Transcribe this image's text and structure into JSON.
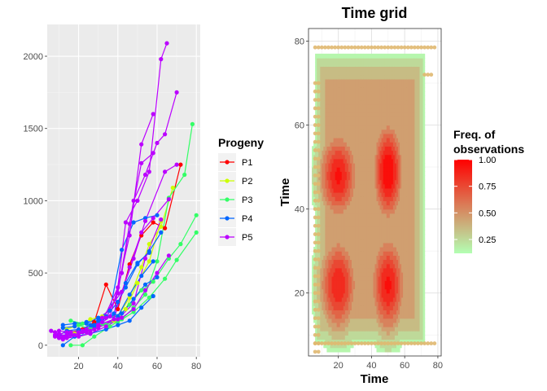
{
  "chart_data": [
    {
      "type": "line",
      "title": "",
      "xlabel": "",
      "ylabel": "",
      "xlim": [
        4,
        82
      ],
      "ylim": [
        -80,
        2220
      ],
      "x_ticks": [
        20,
        40,
        60,
        80
      ],
      "y_ticks": [
        0,
        500,
        1000,
        1500,
        2000
      ],
      "grid": true,
      "legend": {
        "title": "Progeny",
        "position": "right"
      },
      "series": [
        {
          "name": "P1",
          "color": "#FF0000",
          "lines": [
            [
              [
                16,
                90
              ],
              [
                22,
                110
              ],
              [
                28,
                160
              ],
              [
                34,
                420
              ],
              [
                40,
                250
              ],
              [
                46,
                560
              ],
              [
                52,
                760
              ],
              [
                58,
                850
              ],
              [
                64,
                810
              ],
              [
                72,
                1250
              ]
            ]
          ]
        },
        {
          "name": "P2",
          "color": "#CCFF00",
          "lines": [
            [
              [
                14,
                110
              ],
              [
                20,
                140
              ],
              [
                26,
                180
              ],
              [
                32,
                200
              ],
              [
                40,
                200
              ],
              [
                46,
                330
              ],
              [
                52,
                540
              ],
              [
                56,
                700
              ],
              [
                62,
                820
              ],
              [
                68,
                1090
              ]
            ],
            [
              [
                18,
                80
              ],
              [
                24,
                90
              ],
              [
                30,
                130
              ],
              [
                38,
                170
              ],
              [
                44,
                250
              ],
              [
                50,
                430
              ],
              [
                56,
                580
              ],
              [
                62,
                860
              ]
            ]
          ]
        },
        {
          "name": "P3",
          "color": "#33FF66",
          "lines": [
            [
              [
                16,
                0
              ],
              [
                22,
                0
              ],
              [
                28,
                60
              ],
              [
                36,
                130
              ],
              [
                42,
                180
              ],
              [
                48,
                260
              ],
              [
                54,
                350
              ],
              [
                60,
                580
              ],
              [
                66,
                1020
              ],
              [
                74,
                1180
              ],
              [
                78,
                1530
              ]
            ],
            [
              [
                16,
                170
              ],
              [
                22,
                150
              ],
              [
                28,
                120
              ],
              [
                34,
                140
              ],
              [
                40,
                190
              ],
              [
                46,
                280
              ],
              [
                52,
                380
              ],
              [
                58,
                440
              ],
              [
                66,
                600
              ],
              [
                72,
                700
              ],
              [
                80,
                900
              ]
            ],
            [
              [
                20,
                140
              ],
              [
                26,
                110
              ],
              [
                32,
                150
              ],
              [
                40,
                160
              ],
              [
                48,
                230
              ],
              [
                56,
                330
              ],
              [
                64,
                460
              ],
              [
                70,
                590
              ],
              [
                80,
                780
              ]
            ]
          ]
        },
        {
          "name": "P4",
          "color": "#0066FF",
          "lines": [
            [
              [
                12,
                60
              ],
              [
                16,
                80
              ],
              [
                22,
                90
              ],
              [
                28,
                140
              ],
              [
                34,
                200
              ],
              [
                40,
                300
              ],
              [
                44,
                400
              ],
              [
                50,
                560
              ],
              [
                56,
                650
              ],
              [
                62,
                780
              ]
            ],
            [
              [
                10,
                70
              ],
              [
                14,
                100
              ],
              [
                20,
                110
              ],
              [
                28,
                130
              ],
              [
                34,
                190
              ],
              [
                40,
                200
              ],
              [
                46,
                350
              ],
              [
                52,
                480
              ],
              [
                58,
                580
              ]
            ],
            [
              [
                12,
                120
              ],
              [
                18,
                130
              ],
              [
                24,
                150
              ],
              [
                30,
                190
              ],
              [
                36,
                240
              ],
              [
                42,
                660
              ],
              [
                48,
                850
              ],
              [
                54,
                880
              ],
              [
                60,
                900
              ]
            ],
            [
              [
                14,
                80
              ],
              [
                20,
                100
              ],
              [
                26,
                140
              ],
              [
                32,
                180
              ],
              [
                38,
                220
              ],
              [
                44,
                430
              ],
              [
                50,
                570
              ],
              [
                56,
                640
              ]
            ],
            [
              [
                12,
                0
              ],
              [
                18,
                60
              ],
              [
                26,
                80
              ],
              [
                34,
                110
              ],
              [
                40,
                140
              ],
              [
                46,
                170
              ],
              [
                52,
                260
              ],
              [
                58,
                340
              ]
            ],
            [
              [
                12,
                140
              ],
              [
                18,
                150
              ],
              [
                24,
                160
              ],
              [
                30,
                170
              ],
              [
                36,
                200
              ],
              [
                42,
                220
              ],
              [
                48,
                320
              ],
              [
                54,
                420
              ],
              [
                60,
                470
              ]
            ]
          ]
        },
        {
          "name": "P5",
          "color": "#BB00FF",
          "lines": [
            [
              [
                6,
                100
              ],
              [
                10,
                60
              ],
              [
                16,
                80
              ],
              [
                22,
                100
              ],
              [
                30,
                120
              ],
              [
                38,
                180
              ],
              [
                44,
                850
              ],
              [
                50,
                1000
              ],
              [
                56,
                1200
              ],
              [
                62,
                1980
              ],
              [
                65,
                2090
              ]
            ],
            [
              [
                8,
                70
              ],
              [
                14,
                70
              ],
              [
                20,
                90
              ],
              [
                28,
                110
              ],
              [
                36,
                200
              ],
              [
                42,
                500
              ],
              [
                48,
                1000
              ],
              [
                54,
                1180
              ],
              [
                60,
                1400
              ],
              [
                64,
                1460
              ],
              [
                70,
                1750
              ]
            ],
            [
              [
                8,
                90
              ],
              [
                12,
                60
              ],
              [
                18,
                70
              ],
              [
                24,
                90
              ],
              [
                32,
                160
              ],
              [
                40,
                400
              ],
              [
                46,
                760
              ],
              [
                52,
                1390
              ],
              [
                58,
                1600
              ]
            ],
            [
              [
                10,
                80
              ],
              [
                14,
                60
              ],
              [
                20,
                80
              ],
              [
                26,
                100
              ],
              [
                34,
                190
              ],
              [
                40,
                360
              ],
              [
                46,
                840
              ],
              [
                52,
                1260
              ],
              [
                58,
                1330
              ]
            ],
            [
              [
                8,
                60
              ],
              [
                12,
                40
              ],
              [
                18,
                70
              ],
              [
                24,
                110
              ],
              [
                32,
                190
              ],
              [
                42,
                370
              ],
              [
                48,
                600
              ],
              [
                54,
                860
              ],
              [
                64,
                1200
              ],
              [
                70,
                1250
              ]
            ],
            [
              [
                8,
                70
              ],
              [
                14,
                90
              ],
              [
                22,
                90
              ],
              [
                30,
                140
              ],
              [
                38,
                180
              ],
              [
                46,
                540
              ],
              [
                52,
                780
              ],
              [
                58,
                880
              ],
              [
                66,
                1010
              ]
            ],
            [
              [
                10,
                50
              ],
              [
                14,
                50
              ],
              [
                20,
                60
              ],
              [
                26,
                80
              ],
              [
                34,
                130
              ],
              [
                42,
                190
              ],
              [
                48,
                250
              ],
              [
                54,
                380
              ],
              [
                60,
                500
              ],
              [
                66,
                620
              ]
            ],
            [
              [
                10,
                100
              ],
              [
                16,
                90
              ],
              [
                22,
                100
              ],
              [
                30,
                130
              ],
              [
                40,
                180
              ],
              [
                48,
                290
              ],
              [
                54,
                600
              ],
              [
                62,
                870
              ]
            ]
          ]
        }
      ]
    },
    {
      "type": "heatmap",
      "title": "Time grid",
      "xlabel": "Time",
      "ylabel": "Time",
      "xlim": [
        2,
        82
      ],
      "ylim": [
        5,
        83
      ],
      "x_ticks": [
        20,
        40,
        60,
        80
      ],
      "y_ticks": [
        20,
        40,
        60,
        80
      ],
      "grid": true,
      "legend": {
        "title_lines": [
          "Freq. of",
          "observations"
        ],
        "position": "right",
        "ticks": [
          "1.00",
          "0.75",
          "0.50",
          "0.25"
        ],
        "tick_values": [
          1.0,
          0.75,
          0.5,
          0.25
        ],
        "range": [
          0.12,
          1.0
        ],
        "color_low": "#B3FFB3",
        "color_high": "#FF0000"
      },
      "density_peaks": [
        {
          "x": 20,
          "y": 48,
          "sx": 9,
          "sy": 8,
          "w": 0.92
        },
        {
          "x": 50,
          "y": 49,
          "sx": 7,
          "sy": 9,
          "w": 1.0
        },
        {
          "x": 20,
          "y": 22,
          "sx": 9,
          "sy": 9,
          "w": 0.88
        },
        {
          "x": 50,
          "y": 22,
          "sx": 8,
          "sy": 9,
          "w": 0.92
        }
      ],
      "density_region": {
        "x": [
          6,
          72
        ],
        "y": [
          8,
          77
        ]
      },
      "observed_times": [
        6,
        8,
        10,
        12,
        14,
        16,
        18,
        20,
        22,
        24,
        26,
        28,
        30,
        32,
        34,
        36,
        38,
        40,
        42,
        44,
        46,
        48,
        50,
        52,
        54,
        56,
        58,
        60,
        62,
        64,
        66,
        68,
        70,
        72,
        74,
        76,
        78
      ],
      "point_color": "#E0B870"
    }
  ]
}
